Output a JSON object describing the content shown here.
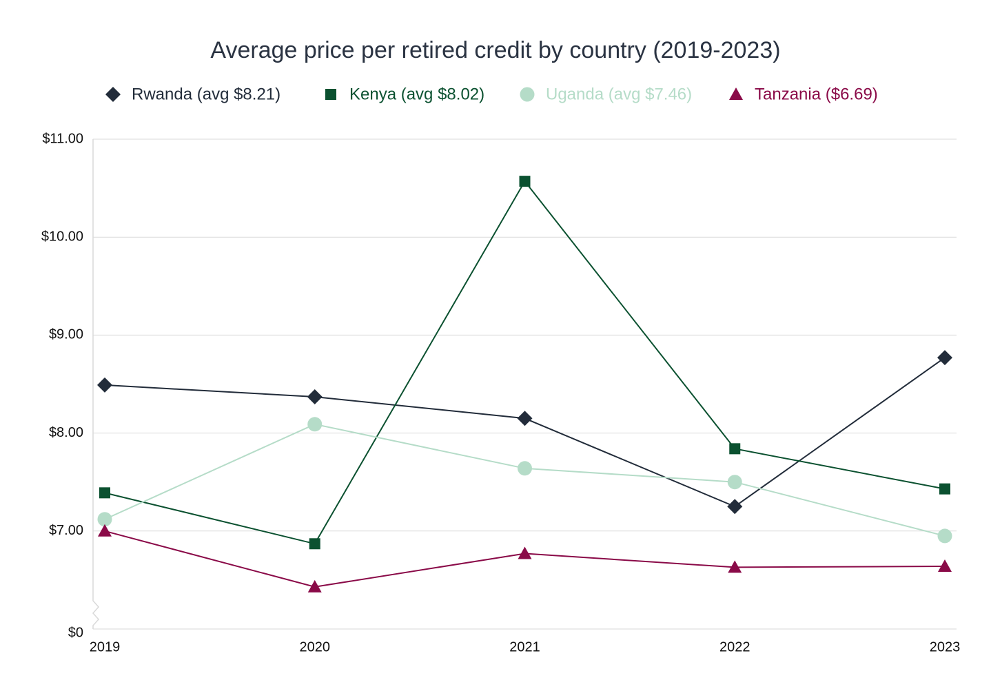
{
  "chart_data": {
    "type": "line",
    "title": "Average price per retired credit by country (2019-2023)",
    "categories": [
      "2019",
      "2020",
      "2021",
      "2022",
      "2023"
    ],
    "series": [
      {
        "name": "Rwanda (avg $8.21)",
        "color": "#222c3a",
        "marker": "diamond",
        "values": [
          8.49,
          8.37,
          8.15,
          7.25,
          8.77
        ]
      },
      {
        "name": "Kenya (avg $8.02)",
        "color": "#0b5130",
        "marker": "square",
        "values": [
          7.39,
          6.87,
          10.57,
          7.84,
          7.43
        ]
      },
      {
        "name": "Uganda (avg $7.46)",
        "color": "#b5dcc8",
        "marker": "circle",
        "values": [
          7.12,
          8.09,
          7.64,
          7.5,
          6.95
        ]
      },
      {
        "name": "Tanzania ($6.69)",
        "color": "#8a0a48",
        "marker": "triangle",
        "values": [
          7.0,
          6.43,
          6.77,
          6.63,
          6.64
        ]
      }
    ],
    "ylim": [
      0,
      11
    ],
    "axis_break": [
      0,
      6
    ],
    "yticks": [
      {
        "value": 0,
        "label": "$0"
      },
      {
        "value": 7,
        "label": "$7.00"
      },
      {
        "value": 8,
        "label": "$8.00"
      },
      {
        "value": 9,
        "label": "$9.00"
      },
      {
        "value": 10,
        "label": "$10.00"
      },
      {
        "value": 11,
        "label": "$11.00"
      }
    ],
    "grid": true,
    "legend": "top"
  }
}
